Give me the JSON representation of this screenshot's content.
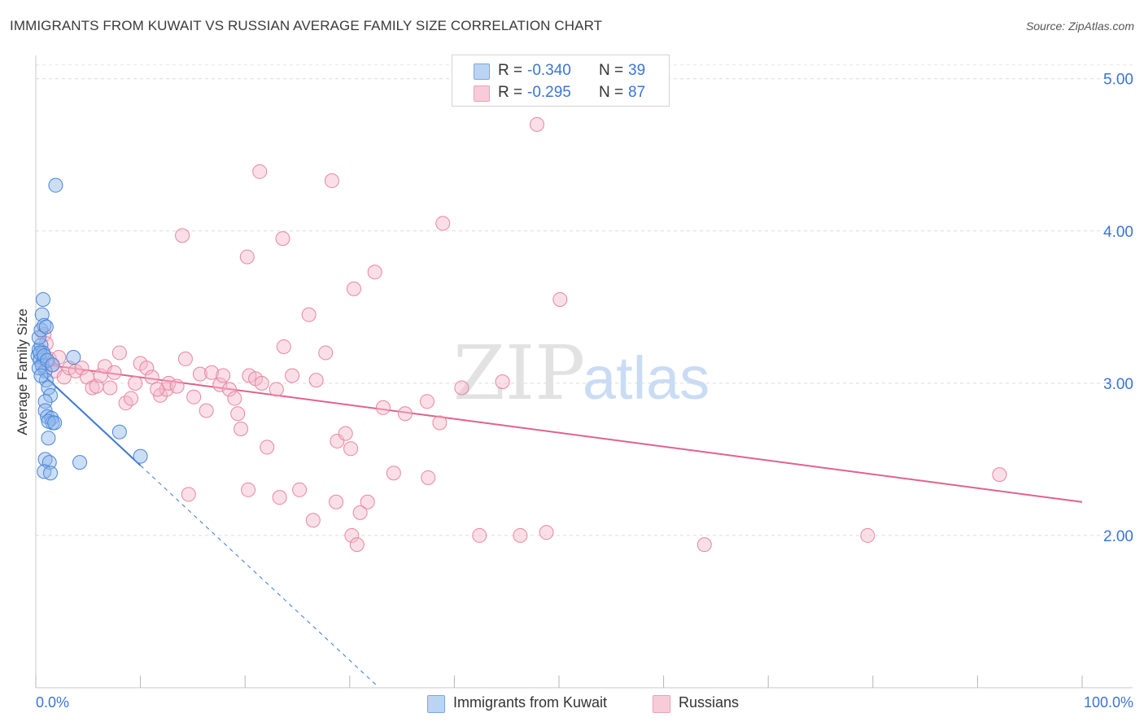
{
  "chart_data": {
    "type": "scatter",
    "title": "IMMIGRANTS FROM KUWAIT VS RUSSIAN AVERAGE FAMILY SIZE CORRELATION CHART",
    "source": "Source: ZipAtlas.com",
    "xlabel": "",
    "ylabel": "Average Family Size",
    "xlim": [
      0,
      100
    ],
    "ylim": [
      1.0,
      5.1
    ],
    "x_tick_labels": [
      "0.0%",
      "100.0%"
    ],
    "y_ticks": [
      2.0,
      3.0,
      4.0,
      5.0
    ],
    "y_tick_labels": [
      "2.00",
      "3.00",
      "4.00",
      "5.00"
    ],
    "watermark": "ZIPatlas",
    "legend": {
      "rows": [
        {
          "r_label": "R =",
          "r_value": "-0.340",
          "n_label": "N =",
          "n_value": "39"
        },
        {
          "r_label": "R =",
          "r_value": "-0.295",
          "n_label": "N =",
          "n_value": "87"
        }
      ]
    },
    "series": [
      {
        "name": "Immigrants from Kuwait",
        "color": "#8db6ec",
        "stroke": "#4a86d8",
        "trend_color": "#3a78d6",
        "trend": {
          "x0": 0.0,
          "y0": 3.1,
          "x1": 10.0,
          "y1": 2.46,
          "dash_to_x": 32.5
        },
        "points": [
          [
            0.2,
            3.18
          ],
          [
            0.3,
            3.22
          ],
          [
            0.4,
            3.15
          ],
          [
            0.5,
            3.25
          ],
          [
            0.6,
            3.12
          ],
          [
            0.7,
            3.2
          ],
          [
            0.3,
            3.3
          ],
          [
            0.5,
            3.35
          ],
          [
            0.6,
            3.45
          ],
          [
            0.7,
            3.55
          ],
          [
            0.8,
            3.38
          ],
          [
            1.0,
            3.37
          ],
          [
            0.4,
            3.2
          ],
          [
            0.8,
            3.18
          ],
          [
            0.9,
            3.08
          ],
          [
            1.0,
            3.02
          ],
          [
            1.2,
            2.97
          ],
          [
            1.4,
            2.92
          ],
          [
            0.9,
            2.88
          ],
          [
            0.9,
            2.82
          ],
          [
            1.1,
            2.78
          ],
          [
            1.5,
            2.77
          ],
          [
            1.6,
            2.74
          ],
          [
            1.2,
            2.75
          ],
          [
            1.8,
            2.74
          ],
          [
            1.2,
            2.64
          ],
          [
            0.9,
            2.5
          ],
          [
            1.3,
            2.48
          ],
          [
            0.8,
            2.42
          ],
          [
            1.4,
            2.41
          ],
          [
            1.9,
            4.3
          ],
          [
            3.6,
            3.17
          ],
          [
            8.0,
            2.68
          ],
          [
            10.0,
            2.52
          ],
          [
            4.2,
            2.48
          ],
          [
            0.3,
            3.1
          ],
          [
            0.5,
            3.05
          ],
          [
            1.1,
            3.15
          ],
          [
            1.6,
            3.12
          ]
        ]
      },
      {
        "name": "Russians",
        "color": "#f5b8cc",
        "stroke": "#e8869f",
        "trend_color": "#e0628c",
        "trend": {
          "x0": 0.0,
          "y0": 3.13,
          "x1": 100.0,
          "y1": 2.22
        },
        "points": [
          [
            0.8,
            3.32
          ],
          [
            1.0,
            3.26
          ],
          [
            1.3,
            3.16
          ],
          [
            1.5,
            3.12
          ],
          [
            1.8,
            3.08
          ],
          [
            2.2,
            3.17
          ],
          [
            2.7,
            3.04
          ],
          [
            3.2,
            3.1
          ],
          [
            3.8,
            3.08
          ],
          [
            4.4,
            3.1
          ],
          [
            4.9,
            3.04
          ],
          [
            5.4,
            2.97
          ],
          [
            5.8,
            2.98
          ],
          [
            6.2,
            3.05
          ],
          [
            6.6,
            3.11
          ],
          [
            7.1,
            2.97
          ],
          [
            7.5,
            3.07
          ],
          [
            8.0,
            3.2
          ],
          [
            8.6,
            2.87
          ],
          [
            9.1,
            2.9
          ],
          [
            9.5,
            3.0
          ],
          [
            10.0,
            3.13
          ],
          [
            10.6,
            3.1
          ],
          [
            11.1,
            3.04
          ],
          [
            11.9,
            2.92
          ],
          [
            12.5,
            2.96
          ],
          [
            12.7,
            3.0
          ],
          [
            13.5,
            2.98
          ],
          [
            14.3,
            3.16
          ],
          [
            15.1,
            2.91
          ],
          [
            15.7,
            3.06
          ],
          [
            16.3,
            2.82
          ],
          [
            16.8,
            3.07
          ],
          [
            17.6,
            2.99
          ],
          [
            17.9,
            3.05
          ],
          [
            18.5,
            2.96
          ],
          [
            19.0,
            2.9
          ],
          [
            19.3,
            2.8
          ],
          [
            19.6,
            2.7
          ],
          [
            20.4,
            3.05
          ],
          [
            21.0,
            3.03
          ],
          [
            21.6,
            3.0
          ],
          [
            22.1,
            2.58
          ],
          [
            23.0,
            2.96
          ],
          [
            23.7,
            3.24
          ],
          [
            24.5,
            3.05
          ],
          [
            25.2,
            2.3
          ],
          [
            26.1,
            3.45
          ],
          [
            26.5,
            2.1
          ],
          [
            27.7,
            3.2
          ],
          [
            28.8,
            2.62
          ],
          [
            29.6,
            2.67
          ],
          [
            30.1,
            2.57
          ],
          [
            31.7,
            2.22
          ],
          [
            33.2,
            2.84
          ],
          [
            34.2,
            2.41
          ],
          [
            35.3,
            2.8
          ],
          [
            37.4,
            2.88
          ],
          [
            38.6,
            2.74
          ],
          [
            40.7,
            2.97
          ],
          [
            44.6,
            3.01
          ],
          [
            14.6,
            2.27
          ],
          [
            20.3,
            2.3
          ],
          [
            23.3,
            2.25
          ],
          [
            28.7,
            2.22
          ],
          [
            30.2,
            2.0
          ],
          [
            30.7,
            1.94
          ],
          [
            31.0,
            2.15
          ],
          [
            37.5,
            2.38
          ],
          [
            42.4,
            2.0
          ],
          [
            46.3,
            2.0
          ],
          [
            48.8,
            2.02
          ],
          [
            63.9,
            1.94
          ],
          [
            79.5,
            2.0
          ],
          [
            92.1,
            2.4
          ],
          [
            21.4,
            4.39
          ],
          [
            28.3,
            4.33
          ],
          [
            38.9,
            4.05
          ],
          [
            14.0,
            3.97
          ],
          [
            23.6,
            3.95
          ],
          [
            20.2,
            3.83
          ],
          [
            32.4,
            3.73
          ],
          [
            30.4,
            3.62
          ],
          [
            50.1,
            3.55
          ],
          [
            47.9,
            4.7
          ],
          [
            26.8,
            3.02
          ],
          [
            11.6,
            2.96
          ]
        ]
      }
    ]
  }
}
